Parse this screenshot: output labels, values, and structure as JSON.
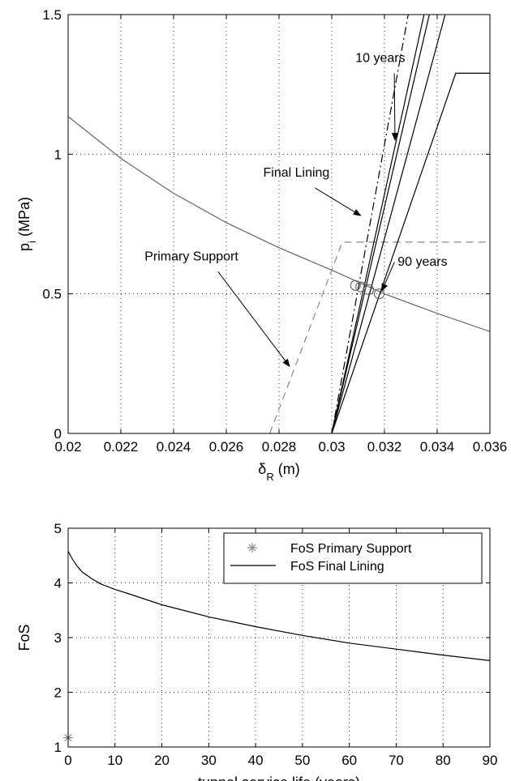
{
  "chart_data": [
    {
      "type": "line",
      "xlabel": "δ",
      "xlabel_sub": "R",
      "xlabel_unit": " (m)",
      "ylabel": "p",
      "ylabel_sub": "i",
      "ylabel_unit": " (MPa)",
      "xlim": [
        0.02,
        0.036
      ],
      "ylim": [
        0,
        1.5
      ],
      "xticks": [
        0.02,
        0.022,
        0.024,
        0.026,
        0.028,
        0.03,
        0.032,
        0.034,
        0.036
      ],
      "yticks": [
        0,
        0.5,
        1,
        1.5
      ],
      "grid": true,
      "series": [
        {
          "color": "#666666",
          "style": "solid",
          "x": [
            0.02,
            0.022,
            0.024,
            0.026,
            0.028,
            0.03,
            0.032,
            0.034,
            0.036
          ],
          "y": [
            1.135,
            0.985,
            0.86,
            0.755,
            0.665,
            0.585,
            0.5,
            0.43,
            0.365
          ]
        },
        {
          "color": "#888888",
          "style": "dashed",
          "x": [
            0.02765,
            0.0304,
            0.036
          ],
          "y": [
            0,
            0.685,
            0.685
          ]
        },
        {
          "color": "#000000",
          "style": "dashdot",
          "x": [
            0.03,
            0.0329
          ],
          "y": [
            0,
            1.5
          ]
        },
        {
          "color": "#000000",
          "style": "solid",
          "x": [
            0.03,
            0.0335
          ],
          "y": [
            0,
            1.5
          ]
        },
        {
          "color": "#000000",
          "style": "solid",
          "x": [
            0.03,
            0.0337
          ],
          "y": [
            0,
            1.5
          ]
        },
        {
          "color": "#000000",
          "style": "solid",
          "x": [
            0.03,
            0.0343
          ],
          "y": [
            0,
            1.5
          ]
        },
        {
          "color": "#000000",
          "style": "solid",
          "x": [
            0.03,
            0.0347,
            0.036
          ],
          "y": [
            0,
            1.29,
            1.29
          ]
        }
      ],
      "markers": {
        "x": [
          0.0309,
          0.0311,
          0.0314,
          0.0318
        ],
        "y": [
          0.53,
          0.525,
          0.515,
          0.5
        ],
        "color": "#666666"
      },
      "annotations": [
        {
          "text": "10 years",
          "x": 0.0309,
          "y": 1.33,
          "arrow_x": 0.0324,
          "arrow_y": 1.05
        },
        {
          "text": "Final Lining",
          "x": 0.0274,
          "y": 0.92,
          "arrow_x": 0.0311,
          "arrow_y": 0.78
        },
        {
          "text": "90 years",
          "x": 0.0325,
          "y": 0.6,
          "arrow_x": 0.0319,
          "arrow_y": 0.51
        },
        {
          "text": "Primary Support",
          "x": 0.0229,
          "y": 0.62,
          "arrow_x": 0.0284,
          "arrow_y": 0.24
        }
      ]
    },
    {
      "type": "line",
      "xlabel": "tunnel service life (years)",
      "ylabel": "FoS",
      "xlim": [
        0,
        90
      ],
      "ylim": [
        1,
        5
      ],
      "xticks": [
        0,
        10,
        20,
        30,
        40,
        50,
        60,
        70,
        80,
        90
      ],
      "yticks": [
        1,
        2,
        3,
        4,
        5
      ],
      "grid": true,
      "legend": "top-right",
      "series": [
        {
          "name": "FoS Primary Support",
          "color": "#888888",
          "marker": "asterisk",
          "x": [
            0
          ],
          "y": [
            1.17
          ]
        },
        {
          "name": "FoS Final Lining",
          "color": "#000000",
          "style": "solid",
          "x": [
            0,
            1,
            2,
            3,
            5,
            7,
            10,
            13,
            20,
            30,
            40,
            50,
            60,
            70,
            80,
            90
          ],
          "y": [
            4.58,
            4.42,
            4.3,
            4.2,
            4.08,
            3.98,
            3.88,
            3.8,
            3.6,
            3.38,
            3.2,
            3.04,
            2.9,
            2.79,
            2.68,
            2.58
          ]
        }
      ]
    }
  ]
}
